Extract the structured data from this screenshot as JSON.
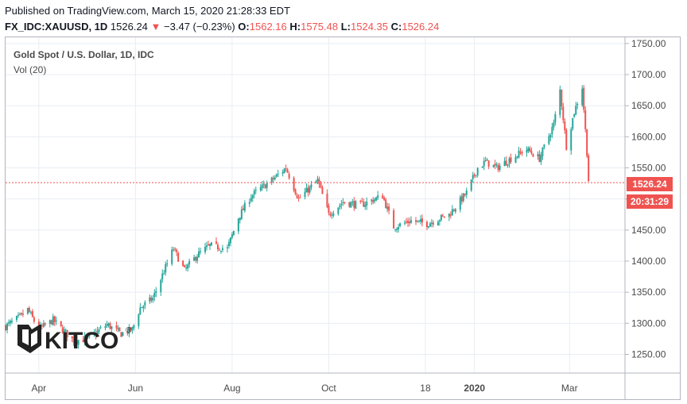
{
  "header": {
    "published": "Published on TradingView.com, March 15, 2020 21:28:33 EDT",
    "symbol": "FX_IDC:XAUUSD, 1D",
    "last": "1526.24",
    "change": "−3.47 (−0.23%)",
    "o_label": "O:",
    "o_value": "1562.16",
    "h_label": "H:",
    "h_value": "1575.48",
    "l_label": "L:",
    "l_value": "1524.35",
    "c_label": "C:",
    "c_value": "1526.24"
  },
  "legend": {
    "title": "Gold Spot / U.S. Dollar, 1D, IDC",
    "volume": "Vol (20)"
  },
  "badges": {
    "price": "1526.24",
    "countdown": "20:31:29"
  },
  "logo": {
    "text": "KITCO",
    "mark": "®"
  },
  "colors": {
    "up": "#26a69a",
    "down": "#ef5350",
    "grid": "#e9edf3",
    "price_line": "#ef5350"
  },
  "chart_data": {
    "type": "candlestick",
    "ylim": [
      1220,
      1760
    ],
    "y_ticks": [
      1250,
      1300,
      1350,
      1400,
      1450,
      1500,
      1550,
      1600,
      1650,
      1700,
      1750
    ],
    "y_tick_labels": [
      "1250.00",
      "1300.00",
      "1350.00",
      "1400.00",
      "1450.00",
      "1500.00",
      "1550.00",
      "1600.00",
      "1650.00",
      "1700.00",
      "1750.00"
    ],
    "x_tick_labels": [
      "Apr",
      "Jun",
      "Aug",
      "Oct",
      "18",
      "2020",
      "Mar"
    ],
    "x_tick_dates": [
      "2019-04-01",
      "2019-06-01",
      "2019-08-01",
      "2019-10-01",
      "2019-12-01",
      "2020-01-01",
      "2020-03-01"
    ],
    "x_range": [
      "2019-03-11",
      "2020-04-05"
    ],
    "last_price": 1526.24,
    "close_path": [
      [
        "2019-03-11",
        1295
      ],
      [
        "2019-03-20",
        1310
      ],
      [
        "2019-03-25",
        1322
      ],
      [
        "2019-04-01",
        1290
      ],
      [
        "2019-04-10",
        1305
      ],
      [
        "2019-04-23",
        1272
      ],
      [
        "2019-05-02",
        1275
      ],
      [
        "2019-05-14",
        1298
      ],
      [
        "2019-05-23",
        1283
      ],
      [
        "2019-05-30",
        1290
      ],
      [
        "2019-06-04",
        1325
      ],
      [
        "2019-06-12",
        1340
      ],
      [
        "2019-06-20",
        1390
      ],
      [
        "2019-06-25",
        1420
      ],
      [
        "2019-07-02",
        1385
      ],
      [
        "2019-07-10",
        1410
      ],
      [
        "2019-07-18",
        1425
      ],
      [
        "2019-07-29",
        1420
      ],
      [
        "2019-08-05",
        1470
      ],
      [
        "2019-08-13",
        1505
      ],
      [
        "2019-08-26",
        1530
      ],
      [
        "2019-09-04",
        1550
      ],
      [
        "2019-09-12",
        1500
      ],
      [
        "2019-09-24",
        1530
      ],
      [
        "2019-10-01",
        1475
      ],
      [
        "2019-10-10",
        1495
      ],
      [
        "2019-10-21",
        1490
      ],
      [
        "2019-11-04",
        1505
      ],
      [
        "2019-11-11",
        1455
      ],
      [
        "2019-11-22",
        1465
      ],
      [
        "2019-12-02",
        1460
      ],
      [
        "2019-12-16",
        1475
      ],
      [
        "2019-12-27",
        1510
      ],
      [
        "2020-01-03",
        1550
      ],
      [
        "2020-01-08",
        1560
      ],
      [
        "2020-01-15",
        1550
      ],
      [
        "2020-01-24",
        1565
      ],
      [
        "2020-02-03",
        1580
      ],
      [
        "2020-02-11",
        1565
      ],
      [
        "2020-02-20",
        1620
      ],
      [
        "2020-02-24",
        1675
      ],
      [
        "2020-02-28",
        1585
      ],
      [
        "2020-03-04",
        1640
      ],
      [
        "2020-03-09",
        1680
      ],
      [
        "2020-03-12",
        1575
      ],
      [
        "2020-03-13",
        1530
      ],
      [
        "2020-03-15",
        1526.24
      ]
    ]
  }
}
